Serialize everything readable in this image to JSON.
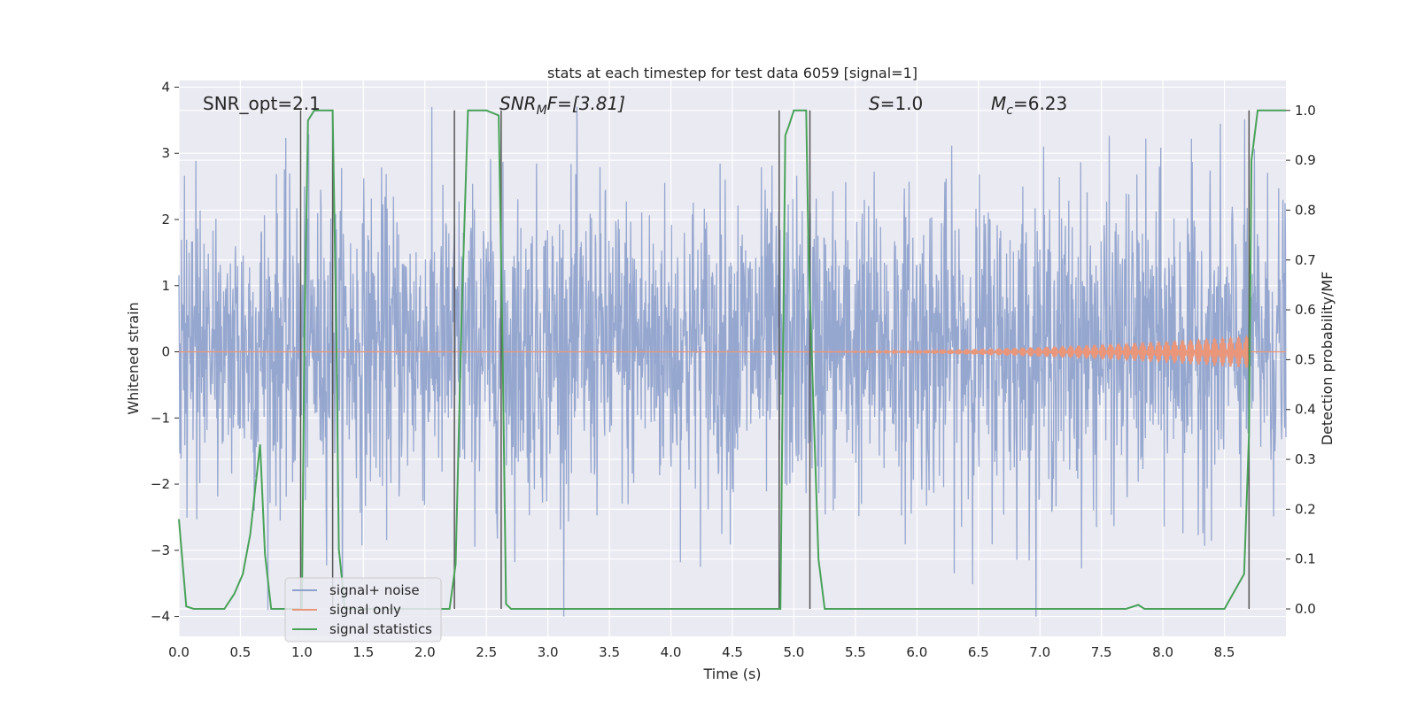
{
  "chart_data": {
    "type": "line",
    "title": "stats at each timestep for test data 6059 [signal=1]",
    "xlabel": "Time (s)",
    "ylabel": "Whitened strain",
    "y2label": "Detection probability/MF",
    "xlim": [
      0,
      9.0
    ],
    "ylim": [
      -4.3,
      4.1
    ],
    "y2lim": [
      -0.055,
      1.06
    ],
    "x_ticks": [
      "0.0",
      "0.5",
      "1.0",
      "1.5",
      "2.0",
      "2.5",
      "3.0",
      "3.5",
      "4.0",
      "4.5",
      "5.0",
      "5.5",
      "6.0",
      "6.5",
      "7.0",
      "7.5",
      "8.0",
      "8.5"
    ],
    "y_ticks": [
      "4",
      "3",
      "2",
      "1",
      "0",
      "−1",
      "−2",
      "−3",
      "−4"
    ],
    "y2_ticks": [
      "1.0",
      "0.9",
      "0.8",
      "0.7",
      "0.6",
      "0.5",
      "0.4",
      "0.3",
      "0.2",
      "0.1",
      "0.0"
    ],
    "grid": true,
    "legend_position": "lower-left",
    "annotations": {
      "snr_opt": "SNR_opt=2.1",
      "snr_mf_main": "SNR",
      "snr_mf_sub": "M",
      "snr_mf_rest": "F=[3.81]",
      "s_main": "S",
      "s_rest": "=1.0",
      "mc_main": "M",
      "mc_sub": "c",
      "mc_rest": "=6.23"
    },
    "series": [
      {
        "name": "signal+ noise",
        "color": "#8da0cb",
        "axis": "left",
        "description_envelope": {
          "typical_range": [
            -2.5,
            2.7
          ],
          "extremes": [
            -4.0,
            3.7
          ]
        }
      },
      {
        "name": "signal only",
        "color": "#e9967a",
        "axis": "left",
        "chirp_start_x": 4.6,
        "chirp_end_x": 8.7,
        "chirp_peak_amplitude": 0.25
      },
      {
        "name": "signal statistics",
        "color": "#4aa25a",
        "axis": "right",
        "x": [
          0.0,
          0.06,
          0.12,
          0.2,
          0.3,
          0.37,
          0.45,
          0.52,
          0.58,
          0.62,
          0.66,
          0.7,
          0.75,
          0.8,
          0.9,
          1.0,
          1.02,
          1.05,
          1.1,
          1.25,
          1.28,
          1.3,
          1.35,
          1.5,
          1.7,
          2.0,
          2.2,
          2.25,
          2.3,
          2.35,
          2.5,
          2.6,
          2.63,
          2.66,
          2.7,
          2.8,
          3.5,
          4.0,
          4.5,
          4.89,
          4.93,
          4.96,
          5.0,
          5.1,
          5.12,
          5.2,
          5.25,
          5.3,
          6.0,
          7.0,
          7.7,
          7.8,
          7.85,
          8.0,
          8.5,
          8.66,
          8.7,
          8.72,
          8.77,
          9.0
        ],
        "values": [
          0.18,
          0.005,
          0.0,
          0.0,
          0.0,
          0.0,
          0.03,
          0.07,
          0.15,
          0.24,
          0.33,
          0.11,
          0.0,
          0.0,
          0.0,
          0.0,
          0.55,
          0.98,
          1.0,
          1.0,
          0.55,
          0.12,
          0.0,
          0.0,
          0.0,
          0.0,
          0.0,
          0.09,
          0.6,
          1.0,
          1.0,
          0.99,
          0.55,
          0.01,
          0.0,
          0.0,
          0.0,
          0.0,
          0.0,
          0.0,
          0.95,
          0.97,
          1.0,
          1.0,
          0.7,
          0.1,
          0.0,
          0.0,
          0.0,
          0.0,
          0.0,
          0.008,
          0.0,
          0.0,
          0.0,
          0.07,
          0.35,
          0.9,
          1.0,
          1.0
        ]
      }
    ],
    "vertical_markers_x": [
      0.99,
      1.25,
      2.24,
      2.62,
      4.88,
      5.13,
      8.7
    ],
    "vertical_marker_color": "#555555"
  }
}
